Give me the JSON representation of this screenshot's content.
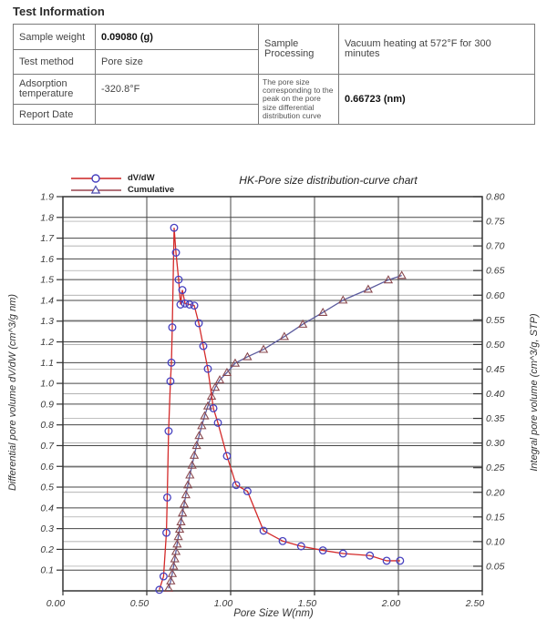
{
  "page_title": "Test Information",
  "table": {
    "rows": [
      {
        "label": "Sample weight",
        "value": "0.09080 (g)"
      },
      {
        "label": "Test method",
        "value": "Pore size"
      },
      {
        "label": "Adsorption temperature",
        "value": "-320.8°F"
      },
      {
        "label": "Report Date",
        "value": ""
      }
    ],
    "sample_processing_label": "Sample Processing",
    "sample_processing_value": "Vacuum heating at 572°F for 300 minutes",
    "peak_label": "The pore size corresponding to the peak on the pore size differential distribution curve",
    "peak_value": "0.66723 (nm)"
  },
  "chart": {
    "title": "HK-Pore size distribution-curve chart",
    "xlabel": "Pore Size W(nm)",
    "ylabel_left": "Differential pore volume dV/dW (cm^3/g nm)",
    "ylabel_right": "Integral pore volume (cm^3/g, STP)",
    "legend": [
      {
        "label": "dV/dW",
        "line_color": "#cc2222",
        "marker": "circle",
        "marker_color": "#4640bf"
      },
      {
        "label": "Cumulative",
        "line_color": "#99444f",
        "marker": "triangle",
        "marker_color": "#4a4aad"
      }
    ]
  },
  "chart_data": {
    "type": "line",
    "title": "HK-Pore size distribution-curve chart",
    "xlabel": "Pore Size W(nm)",
    "ylabel_left": "Differential pore volume dV/dW (cm^3/g nm)",
    "ylabel_right": "Integral pore volume (cm^3/g, STP)",
    "xlim": [
      0,
      2.5
    ],
    "ylim_left": [
      0,
      1.9
    ],
    "ylim_right": [
      0,
      0.8
    ],
    "grid": "on",
    "legend_position": "top-left",
    "x_ticks": [
      "0.00",
      "0.50",
      "1.00",
      "1.50",
      "2.00",
      "2.50"
    ],
    "left_ticks": [
      "0.1",
      "0.2",
      "0.3",
      "0.4",
      "0.5",
      "0.6",
      "0.7",
      "0.8",
      "0.9",
      "1.0",
      "1.1",
      "1.2",
      "1.3",
      "1.4",
      "1.5",
      "1.6",
      "1.7",
      "1.8",
      "1.9"
    ],
    "right_ticks": [
      "0.05",
      "0.10",
      "0.15",
      "0.20",
      "0.25",
      "0.30",
      "0.35",
      "0.40",
      "0.45",
      "0.50",
      "0.55",
      "0.60",
      "0.65",
      "0.70",
      "0.75",
      "0.80"
    ],
    "series": [
      {
        "name": "Cumulative",
        "axis": "right",
        "marker": "triangle",
        "line_color": "#5c5c9e",
        "marker_color": "#8a4a50",
        "points": [
          [
            0.63,
            0.005
          ],
          [
            0.643,
            0.02
          ],
          [
            0.652,
            0.035
          ],
          [
            0.66,
            0.05
          ],
          [
            0.667,
            0.065
          ],
          [
            0.674,
            0.08
          ],
          [
            0.681,
            0.095
          ],
          [
            0.688,
            0.11
          ],
          [
            0.696,
            0.125
          ],
          [
            0.704,
            0.14
          ],
          [
            0.713,
            0.158
          ],
          [
            0.723,
            0.176
          ],
          [
            0.733,
            0.195
          ],
          [
            0.745,
            0.215
          ],
          [
            0.757,
            0.235
          ],
          [
            0.77,
            0.255
          ],
          [
            0.783,
            0.275
          ],
          [
            0.797,
            0.295
          ],
          [
            0.812,
            0.315
          ],
          [
            0.828,
            0.335
          ],
          [
            0.845,
            0.355
          ],
          [
            0.864,
            0.375
          ],
          [
            0.886,
            0.395
          ],
          [
            0.908,
            0.413
          ],
          [
            0.935,
            0.428
          ],
          [
            0.978,
            0.443
          ],
          [
            1.027,
            0.462
          ],
          [
            1.1,
            0.475
          ],
          [
            1.196,
            0.49
          ],
          [
            1.32,
            0.516
          ],
          [
            1.43,
            0.541
          ],
          [
            1.55,
            0.565
          ],
          [
            1.67,
            0.59
          ],
          [
            1.82,
            0.612
          ],
          [
            1.94,
            0.631
          ],
          [
            2.02,
            0.64
          ]
        ]
      },
      {
        "name": "dV/dW",
        "axis": "left",
        "marker": "circle",
        "line_color": "#d42a2a",
        "marker_color": "#4640bf",
        "points": [
          [
            0.575,
            0.005
          ],
          [
            0.6,
            0.07
          ],
          [
            0.617,
            0.28
          ],
          [
            0.622,
            0.45
          ],
          [
            0.63,
            0.77
          ],
          [
            0.641,
            1.01
          ],
          [
            0.647,
            1.1
          ],
          [
            0.652,
            1.27
          ],
          [
            0.663,
            1.75
          ],
          [
            0.674,
            1.63
          ],
          [
            0.69,
            1.5
          ],
          [
            0.701,
            1.38
          ],
          [
            0.712,
            1.45
          ],
          [
            0.728,
            1.385
          ],
          [
            0.755,
            1.38
          ],
          [
            0.783,
            1.375
          ],
          [
            0.81,
            1.29
          ],
          [
            0.837,
            1.18
          ],
          [
            0.864,
            1.07
          ],
          [
            0.897,
            0.88
          ],
          [
            0.924,
            0.81
          ],
          [
            0.978,
            0.65
          ],
          [
            1.033,
            0.51
          ],
          [
            1.1,
            0.48
          ],
          [
            1.196,
            0.29
          ],
          [
            1.31,
            0.24
          ],
          [
            1.42,
            0.215
          ],
          [
            1.55,
            0.195
          ],
          [
            1.67,
            0.18
          ],
          [
            1.83,
            0.17
          ],
          [
            1.93,
            0.145
          ],
          [
            2.01,
            0.145
          ]
        ]
      }
    ]
  }
}
